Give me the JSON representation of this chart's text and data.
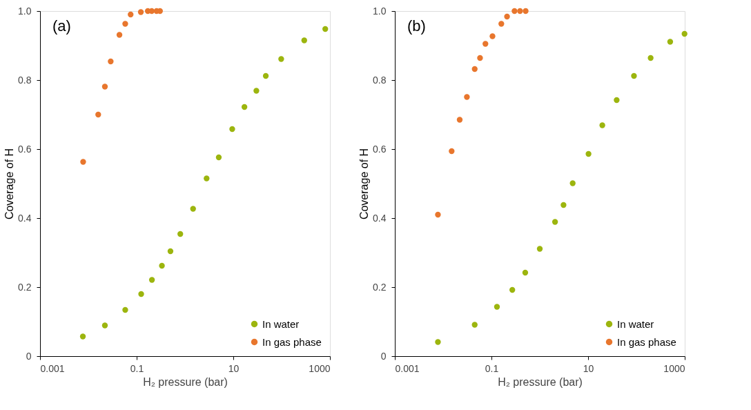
{
  "chart_data": [
    {
      "type": "scatter",
      "xlabel": "H₂ pressure (bar)",
      "ylabel": "Coverage of H",
      "annotations": [
        "(a)"
      ],
      "log": "x",
      "legend": "bottom right",
      "marker": "circle",
      "xlim": [
        0.001,
        1000
      ],
      "xticks": [
        0.001,
        0.1,
        10,
        1000
      ],
      "ylim": [
        0,
        1
      ],
      "yticks": [
        0,
        0.2,
        0.4,
        0.6,
        0.8,
        {
          "value": 1,
          "label": "1.0"
        }
      ],
      "series": [
        {
          "name": "In water",
          "color": "#9cb50e",
          "x": [
            0.0077,
            0.022,
            0.058,
            0.124,
            0.207,
            0.333,
            0.5,
            0.8,
            1.47,
            2.8,
            5.0,
            9.5,
            17,
            30,
            47,
            98,
            294,
            800
          ],
          "values": [
            0.057,
            0.089,
            0.134,
            0.18,
            0.221,
            0.262,
            0.304,
            0.354,
            0.427,
            0.515,
            0.576,
            0.658,
            0.722,
            0.769,
            0.812,
            0.861,
            0.915,
            0.948
          ]
        },
        {
          "name": "In gas phase",
          "color": "#e8762d",
          "x": [
            0.0078,
            0.016,
            0.022,
            0.029,
            0.044,
            0.058,
            0.075,
            0.122,
            0.17,
            0.205,
            0.258,
            0.304
          ],
          "values": [
            0.563,
            0.7,
            0.781,
            0.854,
            0.931,
            0.963,
            0.99,
            0.997,
            1.0,
            1.0,
            1.0,
            1.0
          ]
        }
      ]
    },
    {
      "type": "scatter",
      "xlabel": "H₂ pressure (bar)",
      "ylabel": "Coverage of H",
      "annotations": [
        "(b)"
      ],
      "log": "x",
      "legend": "bottom right",
      "marker": "circle",
      "xlim": [
        0.001,
        1000
      ],
      "xticks": [
        0.001,
        0.1,
        10,
        1000
      ],
      "ylim": [
        0,
        1
      ],
      "yticks": [
        0,
        0.2,
        0.4,
        0.6,
        0.8,
        {
          "value": 1,
          "label": "1.0"
        }
      ],
      "series": [
        {
          "name": "In water",
          "color": "#9cb50e",
          "x": [
            0.0078,
            0.045,
            0.13,
            0.27,
            0.5,
            1.0,
            2.07,
            3.1,
            4.8,
            10.2,
            19.7,
            39,
            89,
            197,
            500,
            990
          ],
          "values": [
            0.041,
            0.091,
            0.143,
            0.192,
            0.242,
            0.311,
            0.389,
            0.438,
            0.501,
            0.586,
            0.669,
            0.742,
            0.812,
            0.864,
            0.911,
            0.934
          ]
        },
        {
          "name": "In gas phase",
          "color": "#e8762d",
          "x": [
            0.0078,
            0.015,
            0.022,
            0.031,
            0.045,
            0.058,
            0.075,
            0.105,
            0.16,
            0.21,
            0.3,
            0.39,
            0.51
          ],
          "values": [
            0.41,
            0.594,
            0.685,
            0.751,
            0.832,
            0.864,
            0.905,
            0.927,
            0.963,
            0.984,
            1.0,
            1.0,
            1.0
          ]
        }
      ]
    }
  ]
}
